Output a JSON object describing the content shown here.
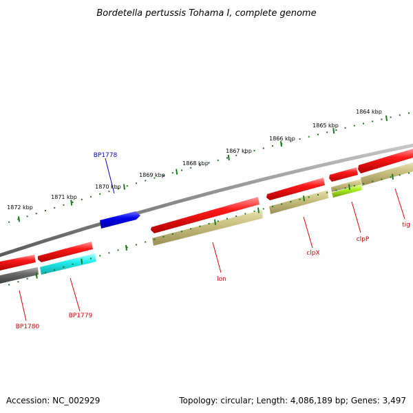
{
  "title": "Bordetella pertussis Tohama I, complete genome",
  "footer": {
    "accession": "Accession: NC_002929",
    "summary": "Topology: circular; Length: 4,086,189 bp; Genes: 3,497"
  },
  "colors": {
    "backbone": "#888888",
    "forward_strand": "#ee0000",
    "reverse_strand": "#0000dd",
    "cog_khaki": "#c8c080",
    "cog_cyan": "#22eeee",
    "cog_grey": "#777777",
    "cog_lime": "#aaee22",
    "ruler_tick": "#1a7a1a",
    "label_red": "#dd0000",
    "label_blue": "#0000cc"
  },
  "ruler_ticks": [
    {
      "label": "1864 kbp"
    },
    {
      "label": "1865 kbp"
    },
    {
      "label": "1866 kbp"
    },
    {
      "label": "1867 kbp"
    },
    {
      "label": "1868 kbp"
    },
    {
      "label": "1869 kbp"
    },
    {
      "label": "1870 kbp"
    },
    {
      "label": "1871 kbp"
    },
    {
      "label": "1872 kbp"
    }
  ],
  "gene_labels": [
    {
      "name": "BP1778",
      "color": "label_blue"
    },
    {
      "name": "BP1779",
      "color": "label_red"
    },
    {
      "name": "BP1780",
      "color": "label_red"
    },
    {
      "name": "lon",
      "color": "label_red"
    },
    {
      "name": "clpX",
      "color": "label_red"
    },
    {
      "name": "clpP",
      "color": "label_red"
    },
    {
      "name": "tig",
      "color": "label_red"
    }
  ]
}
